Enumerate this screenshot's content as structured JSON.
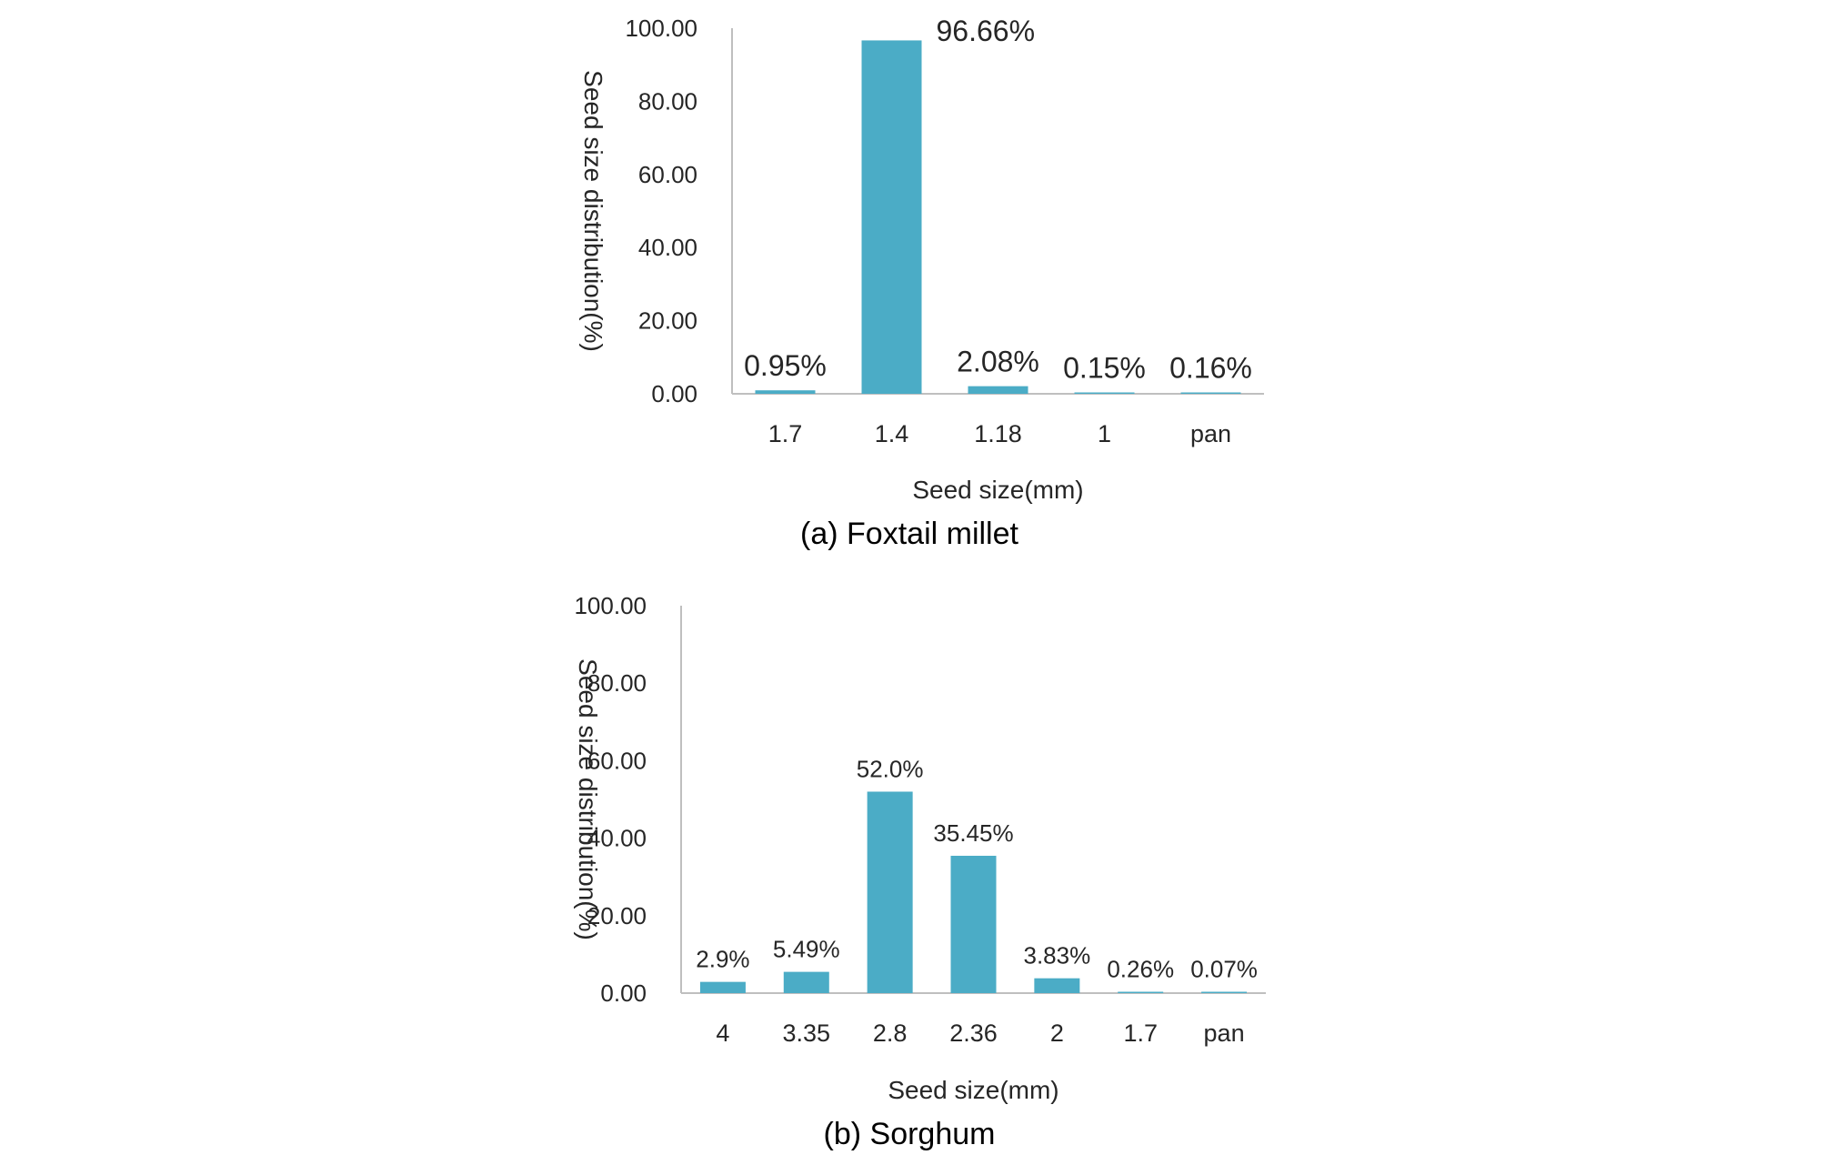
{
  "colors": {
    "bar": "#4bacc6",
    "axis": "#bfbfbf",
    "text": "#262626"
  },
  "chart_data": [
    {
      "type": "bar",
      "caption": "(a)  Foxtail  millet",
      "xlabel": "Seed size(mm)",
      "ylabel": "Seed size distribution(%)",
      "ylim": [
        0,
        100
      ],
      "yticks": [
        "0.00",
        "20.00",
        "40.00",
        "60.00",
        "80.00",
        "100.00"
      ],
      "categories": [
        "1.7",
        "1.4",
        "1.18",
        "1",
        "pan"
      ],
      "values": [
        0.95,
        96.66,
        2.08,
        0.15,
        0.16
      ],
      "data_labels": [
        "0.95%",
        "96.66%",
        "2.08%",
        "0.15%",
        "0.16%"
      ],
      "grid": false,
      "legend": "none"
    },
    {
      "type": "bar",
      "caption": "(b)  Sorghum",
      "xlabel": "Seed size(mm)",
      "ylabel": "Seed size distribution(%)",
      "ylim": [
        0,
        100
      ],
      "yticks": [
        "0.00",
        "20.00",
        "40.00",
        "60.00",
        "80.00",
        "100.00"
      ],
      "categories": [
        "4",
        "3.35",
        "2.8",
        "2.36",
        "2",
        "1.7",
        "pan"
      ],
      "values": [
        2.9,
        5.49,
        52.0,
        35.45,
        3.83,
        0.26,
        0.07
      ],
      "data_labels": [
        "2.9%",
        "5.49%",
        "52.0%",
        "35.45%",
        "3.83%",
        "0.26%",
        "0.07%"
      ],
      "grid": false,
      "legend": "none"
    }
  ]
}
